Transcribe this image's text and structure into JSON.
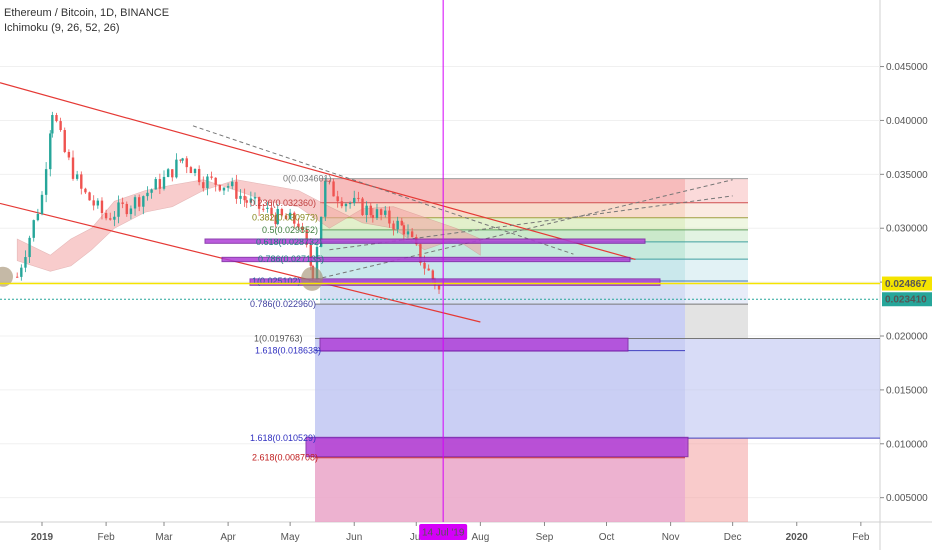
{
  "header": {
    "title": "Ethereum / Bitcoin, 1D, BINANCE",
    "indicator": "Ichimoku (9, 26, 52, 26)"
  },
  "colors": {
    "down_candle": "#ef5350",
    "up_candle": "#26a69a",
    "channel_line": "#e53935",
    "vertical_marker": "#d500f9",
    "price_badge": "#26a69a",
    "yellow_line": "#f5e400",
    "box_fill": "#b040d8",
    "box_border": "#7b1fa2",
    "cloud_red": "#f4a3a3",
    "cloud_green": "#a5d6a7",
    "fib_red_zone": "#f4a0a0",
    "fib_green_zone": "#a8dba8",
    "fib_blue_zone": "#b8bff0",
    "fib_pink_zone": "#eaa5c8"
  },
  "chart_data": {
    "type": "candlestick",
    "x_axis_labels": [
      "2019",
      "Feb",
      "Mar",
      "Apr",
      "May",
      "Jun",
      "Jul",
      "Aug",
      "Sep",
      "Oct",
      "Nov",
      "Dec",
      "2020",
      "Feb"
    ],
    "y_axis_labels": [
      "0.045000",
      "0.040000",
      "0.035000",
      "0.030000",
      "0.025000",
      "0.020000",
      "0.015000",
      "0.010000",
      "0.005000"
    ],
    "ylim": [
      0.0,
      0.049
    ],
    "price_badges": [
      {
        "label": "0.024867",
        "value": 0.024867,
        "style": "yellow"
      },
      {
        "label": "0.023410",
        "value": 0.02341,
        "style": "green"
      }
    ],
    "cursor_date_label": "14 Jul '19",
    "fib_levels": [
      {
        "label": "0(0.034601)",
        "value": 0.034601
      },
      {
        "label": "0.236(0.032360)",
        "value": 0.03236
      },
      {
        "label": "0.382(0.030973)",
        "value": 0.030973
      },
      {
        "label": "0.5(0.029852)",
        "value": 0.029852
      },
      {
        "label": "0.618(0.028732)",
        "value": 0.028732
      },
      {
        "label": "0.786(0.027135)",
        "value": 0.027135
      },
      {
        "label": "1(0.025102)",
        "value": 0.025102
      },
      {
        "label": "0.786(0.022960)",
        "value": 0.02296
      },
      {
        "label": "1(0.019763)",
        "value": 0.019763
      },
      {
        "label": "1.618(0.018638)",
        "value": 0.018638
      },
      {
        "label": "1.618(0.010529)",
        "value": 0.010529
      },
      {
        "label": "2.618(0.008708)",
        "value": 0.008708
      }
    ],
    "price_series_approx": [
      {
        "date": "2018-12-20",
        "close": 0.0255
      },
      {
        "date": "2019-01-01",
        "close": 0.033
      },
      {
        "date": "2019-01-06",
        "close": 0.041
      },
      {
        "date": "2019-01-12",
        "close": 0.037
      },
      {
        "date": "2019-01-20",
        "close": 0.0335
      },
      {
        "date": "2019-02-01",
        "close": 0.031
      },
      {
        "date": "2019-02-15",
        "close": 0.0325
      },
      {
        "date": "2019-03-01",
        "close": 0.0345
      },
      {
        "date": "2019-03-10",
        "close": 0.0365
      },
      {
        "date": "2019-03-20",
        "close": 0.0345
      },
      {
        "date": "2019-04-01",
        "close": 0.034
      },
      {
        "date": "2019-04-10",
        "close": 0.0325
      },
      {
        "date": "2019-04-25",
        "close": 0.031
      },
      {
        "date": "2019-05-05",
        "close": 0.0305
      },
      {
        "date": "2019-05-12",
        "close": 0.026
      },
      {
        "date": "2019-05-18",
        "close": 0.034
      },
      {
        "date": "2019-05-28",
        "close": 0.0325
      },
      {
        "date": "2019-06-10",
        "close": 0.0315
      },
      {
        "date": "2019-06-25",
        "close": 0.03
      },
      {
        "date": "2019-07-05",
        "close": 0.0265
      },
      {
        "date": "2019-07-10",
        "close": 0.025
      },
      {
        "date": "2019-07-14",
        "close": 0.0234
      }
    ]
  }
}
